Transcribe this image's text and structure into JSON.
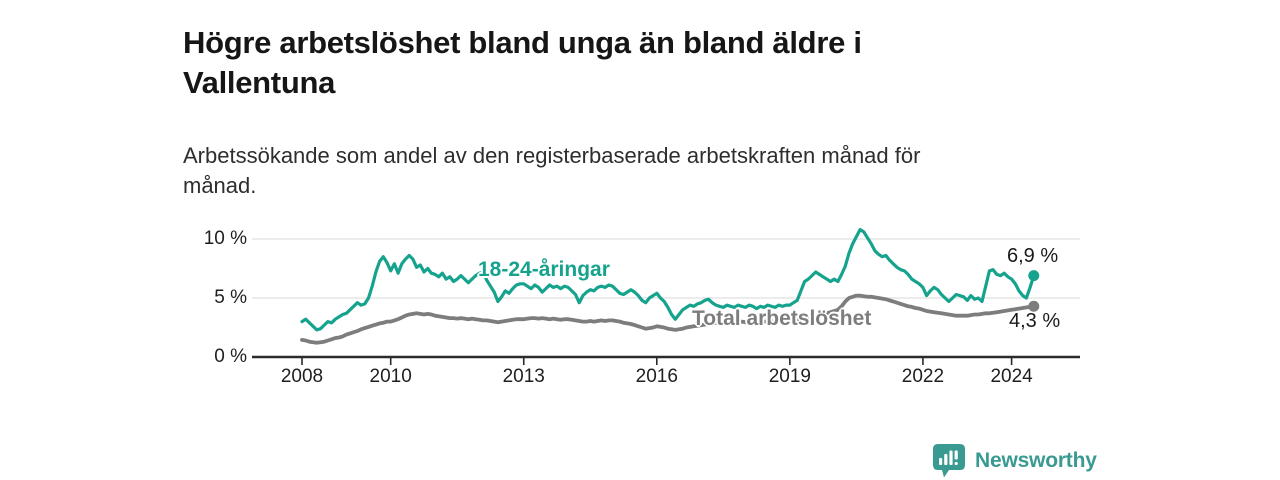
{
  "header": {
    "title": "Högre arbetslöshet bland unga än bland äldre i Vallentuna",
    "subtitle": "Arbetssökande som andel av den registerbaserade arbetskraften månad för månad."
  },
  "chart_data": {
    "type": "line",
    "title": "Högre arbetslöshet bland unga än bland äldre i Vallentuna",
    "subtitle": "Arbetssökande som andel av den registerbaserade arbetskraften månad för månad.",
    "grid": "horizontal",
    "x_start_year": 2008.0,
    "x_points_per_year": 12,
    "x_end_year": 2024.5,
    "x_tick_years": [
      2008,
      2010,
      2013,
      2016,
      2019,
      2022,
      2024
    ],
    "x_tick_labels": [
      "2008",
      "2010",
      "2013",
      "2016",
      "2019",
      "2022",
      "2024"
    ],
    "y_ticks": [
      0,
      5,
      10
    ],
    "y_tick_labels": [
      "0 %",
      "5 %",
      "10 %"
    ],
    "ylim": [
      0,
      11.5
    ],
    "axis_color": "#2b2b2b",
    "gridline_color": "#d9d9d9",
    "series": [
      {
        "name": "18-24-åringar",
        "color": "#16a38e",
        "end_label": "6,9 %",
        "end_value": 6.9,
        "values": [
          3.0,
          3.2,
          2.9,
          2.6,
          2.3,
          2.4,
          2.7,
          3.0,
          2.9,
          3.2,
          3.4,
          3.6,
          3.7,
          4.0,
          4.3,
          4.6,
          4.4,
          4.5,
          5.0,
          6.0,
          7.2,
          8.1,
          8.5,
          8.0,
          7.3,
          7.9,
          7.1,
          7.9,
          8.3,
          8.6,
          8.3,
          7.6,
          7.8,
          7.2,
          7.5,
          7.1,
          7.0,
          6.8,
          7.1,
          6.6,
          6.8,
          6.4,
          6.6,
          6.9,
          6.6,
          6.3,
          6.6,
          6.9,
          7.1,
          7.2,
          6.5,
          6.0,
          5.5,
          4.7,
          5.1,
          5.6,
          5.4,
          5.8,
          6.1,
          6.2,
          6.2,
          6.0,
          5.8,
          6.1,
          5.9,
          5.5,
          5.8,
          6.1,
          5.9,
          6.0,
          5.8,
          6.0,
          5.9,
          5.6,
          5.3,
          4.6,
          5.2,
          5.5,
          5.7,
          5.6,
          5.9,
          6.0,
          5.9,
          6.1,
          6.0,
          5.7,
          5.4,
          5.3,
          5.5,
          5.7,
          5.5,
          5.2,
          4.8,
          4.6,
          5.0,
          5.2,
          5.4,
          5.0,
          4.7,
          4.2,
          3.6,
          3.2,
          3.6,
          4.0,
          4.2,
          4.4,
          4.3,
          4.5,
          4.6,
          4.8,
          4.9,
          4.6,
          4.4,
          4.3,
          4.2,
          4.4,
          4.3,
          4.2,
          4.4,
          4.3,
          4.2,
          4.4,
          4.3,
          4.1,
          4.3,
          4.2,
          4.4,
          4.3,
          4.2,
          4.4,
          4.3,
          4.4,
          4.4,
          4.6,
          4.8,
          5.6,
          6.4,
          6.6,
          6.9,
          7.2,
          7.0,
          6.8,
          6.6,
          6.4,
          6.6,
          6.4,
          7.0,
          7.7,
          8.8,
          9.6,
          10.2,
          10.8,
          10.6,
          10.1,
          9.6,
          9.0,
          8.7,
          8.5,
          8.6,
          8.2,
          7.9,
          7.6,
          7.4,
          7.3,
          7.0,
          6.6,
          6.4,
          6.2,
          5.9,
          5.2,
          5.6,
          5.9,
          5.7,
          5.3,
          5.0,
          4.7,
          5.0,
          5.3,
          5.2,
          5.1,
          4.8,
          5.2,
          4.9,
          5.0,
          4.7,
          6.0,
          7.3,
          7.4,
          7.0,
          6.9,
          7.1,
          6.8,
          6.6,
          6.2,
          5.6,
          5.2,
          5.0,
          5.9,
          6.9
        ]
      },
      {
        "name": "Total arbetslöshet",
        "color": "#7d7d7d",
        "end_label": "4,3 %",
        "end_value": 4.3,
        "values": [
          1.45,
          1.4,
          1.3,
          1.25,
          1.2,
          1.25,
          1.3,
          1.4,
          1.5,
          1.6,
          1.65,
          1.75,
          1.9,
          2.0,
          2.1,
          2.2,
          2.35,
          2.45,
          2.55,
          2.65,
          2.75,
          2.85,
          2.9,
          3.0,
          3.0,
          3.1,
          3.2,
          3.35,
          3.5,
          3.6,
          3.65,
          3.7,
          3.65,
          3.6,
          3.65,
          3.6,
          3.5,
          3.45,
          3.4,
          3.35,
          3.3,
          3.3,
          3.25,
          3.3,
          3.25,
          3.2,
          3.25,
          3.2,
          3.15,
          3.1,
          3.1,
          3.05,
          3.0,
          2.95,
          3.0,
          3.05,
          3.1,
          3.15,
          3.2,
          3.2,
          3.2,
          3.25,
          3.3,
          3.3,
          3.25,
          3.3,
          3.25,
          3.2,
          3.25,
          3.2,
          3.15,
          3.2,
          3.2,
          3.15,
          3.1,
          3.05,
          3.0,
          3.0,
          3.05,
          3.0,
          3.05,
          3.1,
          3.05,
          3.1,
          3.1,
          3.05,
          3.0,
          2.9,
          2.85,
          2.8,
          2.7,
          2.6,
          2.5,
          2.4,
          2.45,
          2.5,
          2.6,
          2.55,
          2.5,
          2.4,
          2.35,
          2.3,
          2.35,
          2.4,
          2.5,
          2.55,
          2.6,
          2.65,
          2.7,
          2.75,
          2.8,
          2.85,
          2.9,
          2.9,
          2.95,
          2.9,
          2.95,
          3.0,
          2.95,
          3.0,
          2.95,
          2.9,
          2.95,
          3.0,
          2.95,
          3.0,
          3.0,
          3.05,
          3.0,
          3.05,
          3.1,
          3.1,
          3.1,
          3.15,
          3.2,
          3.25,
          3.3,
          3.3,
          3.35,
          3.4,
          3.5,
          3.6,
          3.7,
          3.8,
          3.9,
          4.0,
          4.3,
          4.7,
          5.0,
          5.1,
          5.2,
          5.2,
          5.15,
          5.1,
          5.1,
          5.05,
          5.0,
          4.95,
          4.9,
          4.8,
          4.7,
          4.6,
          4.5,
          4.4,
          4.3,
          4.25,
          4.15,
          4.1,
          4.0,
          3.9,
          3.85,
          3.8,
          3.75,
          3.7,
          3.65,
          3.6,
          3.55,
          3.5,
          3.5,
          3.5,
          3.5,
          3.55,
          3.6,
          3.6,
          3.65,
          3.7,
          3.7,
          3.75,
          3.8,
          3.85,
          3.9,
          3.95,
          4.0,
          4.05,
          4.1,
          4.15,
          4.2,
          4.25,
          4.3
        ]
      }
    ]
  },
  "branding": {
    "logo_text": "Newsworthy",
    "logo_color": "#399a92",
    "logo_icon": "newsworthy-chart-bubble-icon"
  }
}
